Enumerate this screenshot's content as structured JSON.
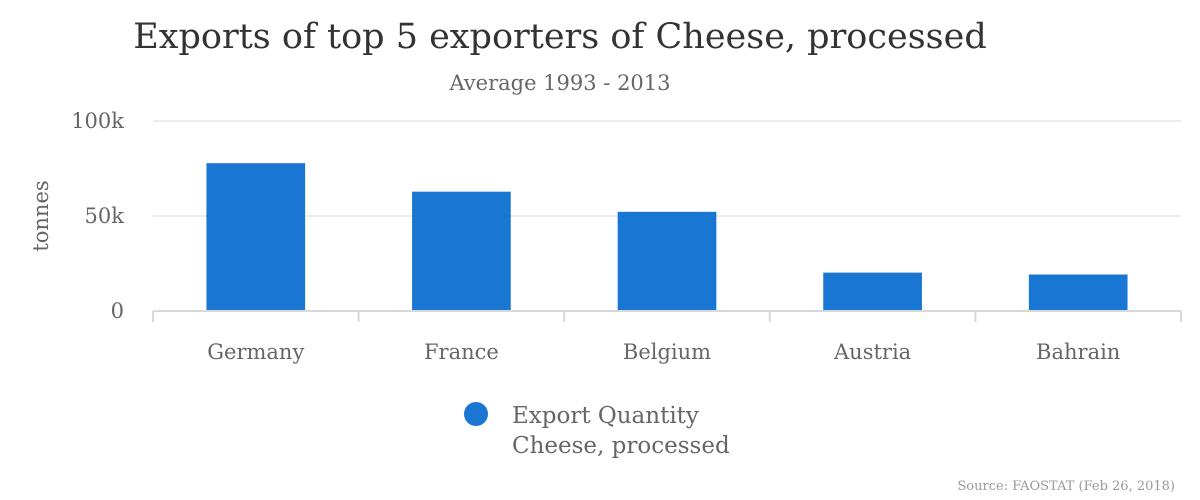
{
  "chart_data": {
    "type": "bar",
    "title": "Exports of top 5 exporters of Cheese, processed",
    "subtitle": "Average 1993 - 2013",
    "ylabel": "tonnes",
    "xlabel": "",
    "categories": [
      "Germany",
      "France",
      "Belgium",
      "Austria",
      "Bahrain"
    ],
    "series": [
      {
        "name": "Export Quantity Cheese, processed",
        "legend_lines": [
          "Export Quantity",
          "Cheese, processed"
        ],
        "color": "#1976d2",
        "values": [
          77800,
          62800,
          52200,
          20200,
          19200
        ]
      }
    ],
    "ylim": [
      0,
      100000
    ],
    "yticks": [
      {
        "value": 0,
        "label": "0"
      },
      {
        "value": 50000,
        "label": "50k"
      },
      {
        "value": 100000,
        "label": "100k"
      }
    ],
    "grid": true,
    "legend_position": "bottom-center",
    "source": "Source: FAOSTAT (Feb 26, 2018)"
  }
}
